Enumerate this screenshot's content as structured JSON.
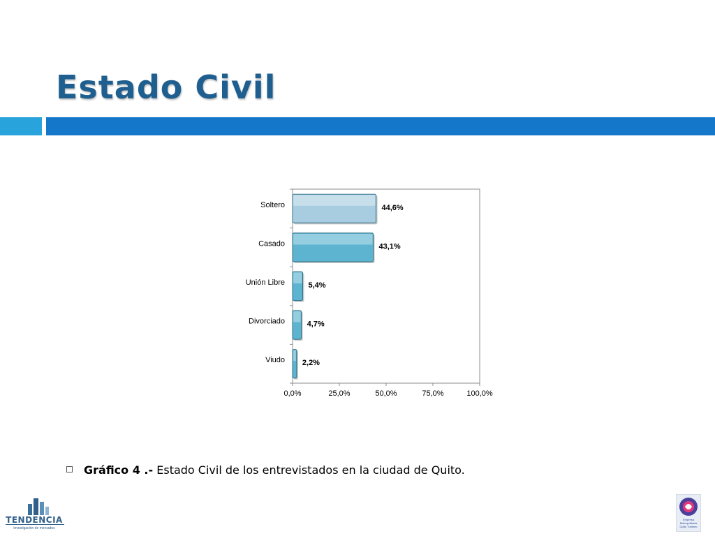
{
  "title": "Estado Civil",
  "chart_data": {
    "type": "bar",
    "orientation": "horizontal",
    "categories": [
      "Soltero",
      "Casado",
      "Unión Libre",
      "Divorciado",
      "Viudo"
    ],
    "values": [
      44.6,
      43.1,
      5.4,
      4.7,
      2.2
    ],
    "value_labels": [
      "44,6%",
      "43,1%",
      "5,4%",
      "4,7%",
      "2,2%"
    ],
    "x_ticks": [
      "0,0%",
      "25,0%",
      "50,0%",
      "75,0%",
      "100,0%"
    ],
    "xlim": [
      0,
      100
    ],
    "grid": false,
    "colors": {
      "top_bar": "#a9cde0",
      "bars": "#5cb4d0",
      "bar_edge": "#2f6f86"
    }
  },
  "caption": {
    "label": "Gráfico 4 .-",
    "text": " Estado Civil de los entrevistados en la ciudad de Quito."
  },
  "logos": {
    "left": {
      "name": "TENDENCIA",
      "tagline": "investigación de mercados"
    },
    "right": {
      "lines": [
        "Empresa",
        "Metropolitana",
        "Quito Turismo"
      ]
    }
  },
  "colors": {
    "title": "#1f5f8f",
    "band_light": "#29a3dc",
    "band_dark": "#1577c9"
  }
}
